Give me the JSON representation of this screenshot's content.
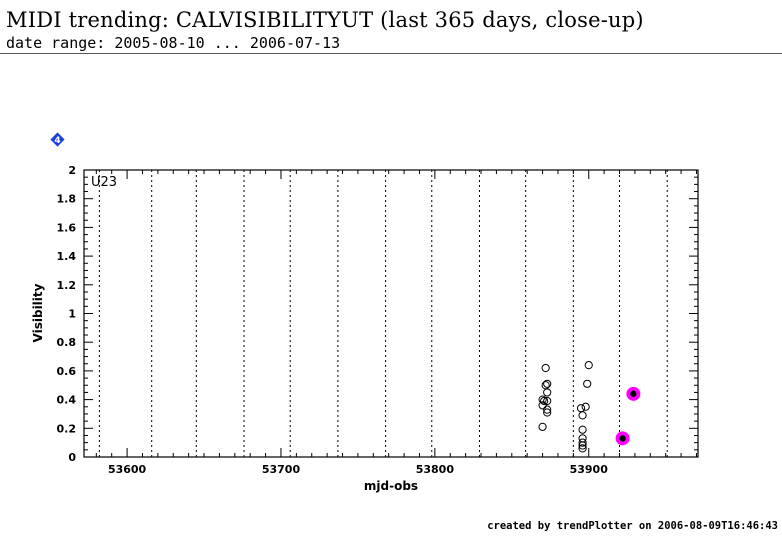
{
  "header": {
    "title": "MIDI trending: CALVISIBILITYUT (last 365 days, close-up)",
    "subtitle": "date range: 2005-08-10 ... 2006-07-13"
  },
  "footer": {
    "credit": "created by trendPlotter on 2006-08-09T16:46:43"
  },
  "marker": {
    "label": "4",
    "color": "#1a3fe0"
  },
  "chart_data": {
    "type": "scatter",
    "panel_label": "U23",
    "xlabel": "mjd-obs",
    "ylabel": "Visibility",
    "xlim": [
      53572,
      53971
    ],
    "ylim": [
      0,
      2
    ],
    "xticks": [
      53600,
      53700,
      53800,
      53900
    ],
    "yticks": [
      0,
      0.2,
      0.4,
      0.6,
      0.8,
      1,
      1.2,
      1.4,
      1.6,
      1.8,
      2
    ],
    "ytick_labels": [
      "0",
      "0.2",
      "0.4",
      "0.6",
      "0.8",
      "1",
      "1.2",
      "1.4",
      "1.6",
      "1.8",
      "2"
    ],
    "grid": "vertical dotted lines",
    "vlines": [
      53582,
      53616,
      53645,
      53676,
      53706,
      53737,
      53768,
      53798,
      53829,
      53859,
      53890,
      53920,
      53951
    ],
    "series": [
      {
        "marker": "open circle",
        "color": "#000000",
        "points": [
          {
            "x": 53870,
            "y": 0.21
          },
          {
            "x": 53870,
            "y": 0.36
          },
          {
            "x": 53870,
            "y": 0.4
          },
          {
            "x": 53871,
            "y": 0.39
          },
          {
            "x": 53872,
            "y": 0.62
          },
          {
            "x": 53872,
            "y": 0.5
          },
          {
            "x": 53873,
            "y": 0.51
          },
          {
            "x": 53873,
            "y": 0.45
          },
          {
            "x": 53873,
            "y": 0.39
          },
          {
            "x": 53873,
            "y": 0.33
          },
          {
            "x": 53873,
            "y": 0.31
          },
          {
            "x": 53895,
            "y": 0.34
          },
          {
            "x": 53896,
            "y": 0.29
          },
          {
            "x": 53896,
            "y": 0.19
          },
          {
            "x": 53896,
            "y": 0.13
          },
          {
            "x": 53896,
            "y": 0.1
          },
          {
            "x": 53896,
            "y": 0.08
          },
          {
            "x": 53896,
            "y": 0.06
          },
          {
            "x": 53898,
            "y": 0.35
          },
          {
            "x": 53899,
            "y": 0.51
          },
          {
            "x": 53900,
            "y": 0.64
          }
        ]
      },
      {
        "marker": "filled circle highlighted",
        "color": "#ff00ff",
        "points": [
          {
            "x": 53922,
            "y": 0.13
          },
          {
            "x": 53929,
            "y": 0.44
          }
        ]
      }
    ]
  }
}
